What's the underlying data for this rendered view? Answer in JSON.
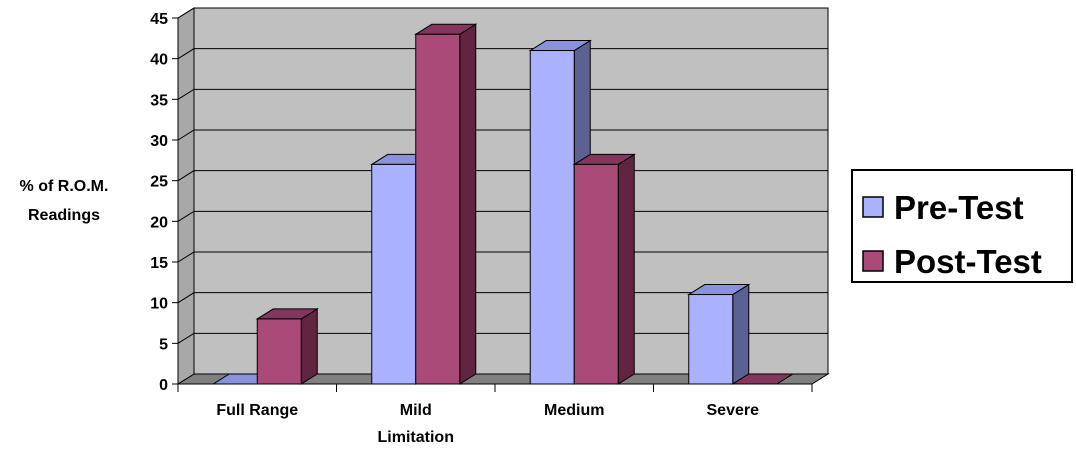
{
  "chart_data": {
    "type": "bar",
    "style": "3d-clustered-column",
    "categories": [
      "Full Range",
      "Mild Limitation",
      "Medium",
      "Severe"
    ],
    "category_lines": [
      [
        "Full Range"
      ],
      [
        "Mild",
        "Limitation"
      ],
      [
        "Medium"
      ],
      [
        "Severe"
      ]
    ],
    "series": [
      {
        "name": "Pre-Test",
        "values": [
          0,
          27,
          41,
          11
        ],
        "color": "#aab2ff",
        "side_color": "#5c6194",
        "top_color": "#8a92dd"
      },
      {
        "name": "Post-Test",
        "values": [
          8,
          43,
          27,
          0
        ],
        "color": "#a94a78",
        "side_color": "#612441",
        "top_color": "#85365c"
      }
    ],
    "title": "",
    "xlabel": "",
    "ylabel_lines": [
      "% of R.O.M.",
      "Readings"
    ],
    "ylim": [
      0,
      45
    ],
    "yticks": [
      0,
      5,
      10,
      15,
      20,
      25,
      30,
      35,
      40,
      45
    ],
    "grid": true,
    "legend_position": "right",
    "wall_color": "#c0c0c0",
    "floor_color": "#808080"
  }
}
